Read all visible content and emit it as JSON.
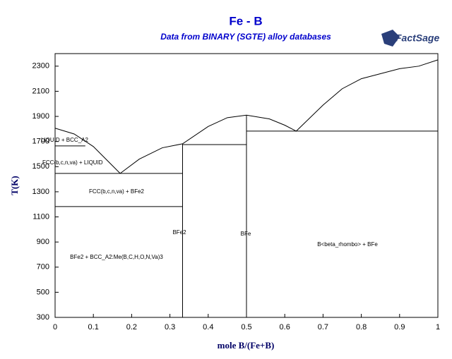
{
  "chart_data": {
    "type": "line",
    "title": "Fe - B",
    "subtitle": "Data from BINARY (SGTE) alloy databases",
    "logo": "FactSage",
    "x_label": "mole B/(Fe+B)",
    "y_label": "T(K)",
    "xlim": [
      0,
      1
    ],
    "ylim": [
      300,
      2400
    ],
    "xticks": [
      0,
      0.1,
      0.2,
      0.3,
      0.4,
      0.5,
      0.6,
      0.7,
      0.8,
      0.9,
      1
    ],
    "yticks": [
      300,
      500,
      700,
      900,
      1100,
      1300,
      1500,
      1700,
      1900,
      2100,
      2300
    ],
    "color": "#000000",
    "series": [
      {
        "x": [
          0,
          0.05,
          0.1,
          0.17
        ],
        "values": [
          1806,
          1760,
          1660,
          1446
        ]
      },
      {
        "x": [
          0.17,
          0.22,
          0.28,
          0.333,
          0.4,
          0.45,
          0.5,
          0.56,
          0.6,
          0.63,
          0.7,
          0.75,
          0.8,
          0.9,
          0.95,
          1
        ],
        "values": [
          1446,
          1560,
          1650,
          1682,
          1820,
          1890,
          1910,
          1880,
          1830,
          1783,
          1990,
          2120,
          2200,
          2280,
          2300,
          2350
        ]
      },
      {
        "x": [
          0,
          0.079
        ],
        "values": [
          1665,
          1665
        ]
      },
      {
        "x": [
          0,
          0.333
        ],
        "values": [
          1446,
          1446
        ]
      },
      {
        "x": [
          0,
          0.333
        ],
        "values": [
          1182,
          1182
        ]
      },
      {
        "x": [
          0.333,
          0.333
        ],
        "values": [
          300,
          1682
        ]
      },
      {
        "x": [
          0.333,
          0.5
        ],
        "values": [
          1676,
          1676
        ]
      },
      {
        "x": [
          0.5,
          0.5
        ],
        "values": [
          300,
          1910
        ]
      },
      {
        "x": [
          0.5,
          1
        ],
        "values": [
          1783,
          1783
        ]
      }
    ],
    "annotations": [
      "LIQUID + BCC_A2",
      "FCC(b,c,n,va) + LIQUID",
      "FCC(b,c,n,va) + BFe2",
      "BFe2",
      "BFe",
      "B<beta_rhombo> + BFe",
      "BFe2 + BCC_A2:Me(B,C,H,O,N,Va)3"
    ]
  }
}
